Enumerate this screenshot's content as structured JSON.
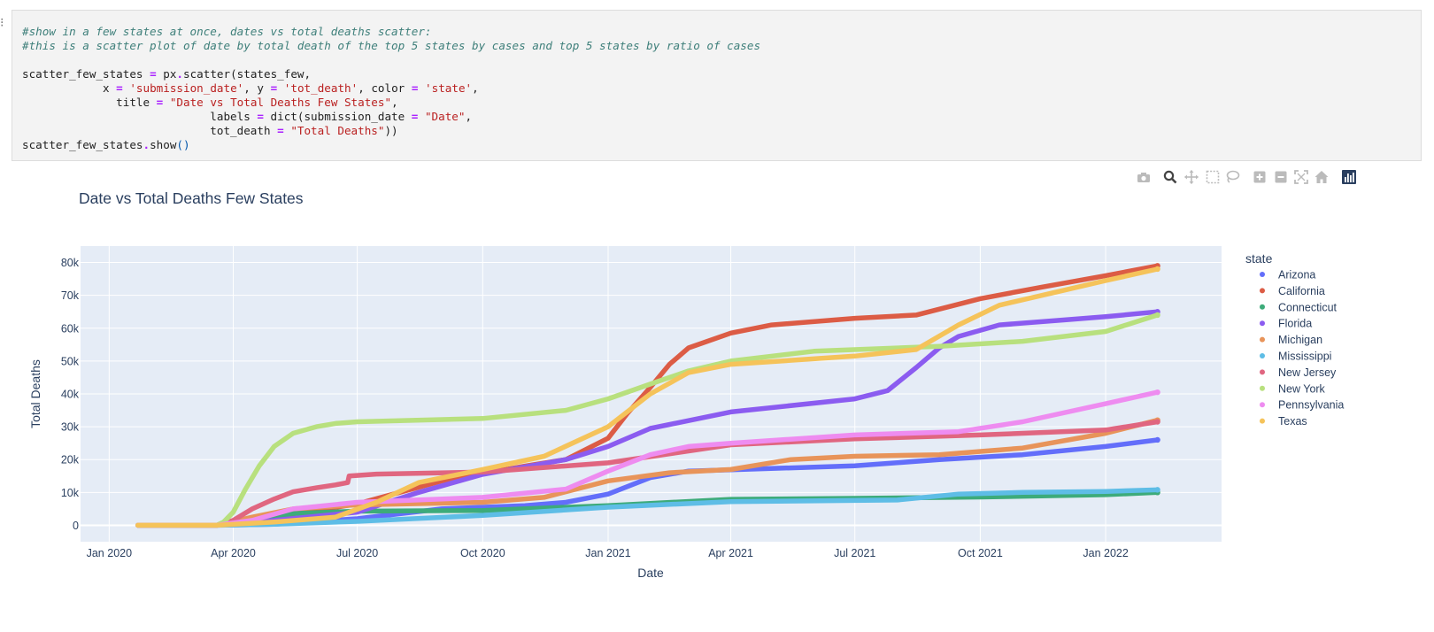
{
  "code_cell": {
    "lines": [
      [
        [
          "c",
          "#show in a few states at once, dates vs total deaths scatter:"
        ]
      ],
      [
        [
          "c",
          "#this is a scatter plot of date by total death of the top 5 states by cases and top 5 states by ratio of cases"
        ]
      ],
      [
        [
          "t",
          ""
        ]
      ],
      [
        [
          "t",
          "scatter_few_states "
        ],
        [
          "o",
          "="
        ],
        [
          "t",
          " px"
        ],
        [
          "o",
          "."
        ],
        [
          "t",
          "scatter(states_few,"
        ]
      ],
      [
        [
          "t",
          "            x "
        ],
        [
          "o",
          "="
        ],
        [
          "t",
          " "
        ],
        [
          "s",
          "'submission_date'"
        ],
        [
          "t",
          ", y "
        ],
        [
          "o",
          "="
        ],
        [
          "t",
          " "
        ],
        [
          "s",
          "'tot_death'"
        ],
        [
          "t",
          ", color "
        ],
        [
          "o",
          "="
        ],
        [
          "t",
          " "
        ],
        [
          "s",
          "'state'"
        ],
        [
          "t",
          ","
        ]
      ],
      [
        [
          "t",
          "              title "
        ],
        [
          "o",
          "="
        ],
        [
          "t",
          " "
        ],
        [
          "s",
          "\"Date vs Total Deaths Few States\""
        ],
        [
          "t",
          ","
        ]
      ],
      [
        [
          "t",
          "                            labels "
        ],
        [
          "o",
          "="
        ],
        [
          "t",
          " dict(submission_date "
        ],
        [
          "o",
          "="
        ],
        [
          "t",
          " "
        ],
        [
          "s",
          "\"Date\""
        ],
        [
          "t",
          ","
        ]
      ],
      [
        [
          "t",
          "                            tot_death "
        ],
        [
          "o",
          "="
        ],
        [
          "t",
          " "
        ],
        [
          "s",
          "\"Total Deaths\""
        ],
        [
          "t",
          "))"
        ]
      ],
      [
        [
          "t",
          "scatter_few_states"
        ],
        [
          "o",
          "."
        ],
        [
          "t",
          "show"
        ],
        [
          "p",
          "()"
        ]
      ]
    ]
  },
  "modebar": {
    "buttons": [
      {
        "name": "camera-icon",
        "color": "#bbbbbb"
      },
      {
        "name": "zoom-icon",
        "color": "#444444"
      },
      {
        "name": "pan-icon",
        "color": "#bbbbbb"
      },
      {
        "name": "box-select-icon",
        "color": "#bbbbbb"
      },
      {
        "name": "lasso-select-icon",
        "color": "#bbbbbb"
      },
      {
        "name": "zoom-in-icon",
        "color": "#bbbbbb"
      },
      {
        "name": "zoom-out-icon",
        "color": "#bbbbbb"
      },
      {
        "name": "autoscale-icon",
        "color": "#bbbbbb"
      },
      {
        "name": "reset-axes-icon",
        "color": "#bbbbbb"
      },
      {
        "name": "plotly-logo-icon",
        "color": "#2a3f5f"
      }
    ]
  },
  "chart_data": {
    "type": "scatter",
    "title": "Date vs Total Deaths Few States",
    "xlabel": "Date",
    "ylabel": "Total Deaths",
    "legend_title": "state",
    "legend_position": "right",
    "grid": true,
    "plot_bgcolor": "#e5ecf6",
    "x_ticks": [
      "2020-01-01",
      "2020-04-01",
      "2020-07-01",
      "2020-10-01",
      "2021-01-01",
      "2021-04-01",
      "2021-07-01",
      "2021-10-01",
      "2022-01-01"
    ],
    "x_tick_labels": [
      "Jan 2020",
      "Apr 2020",
      "Jul 2020",
      "Oct 2020",
      "Jan 2021",
      "Apr 2021",
      "Jul 2021",
      "Oct 2021",
      "Jan 2022"
    ],
    "xlim": [
      "2019-12-11",
      "2022-03-27"
    ],
    "y_ticks": [
      0,
      10000,
      20000,
      30000,
      40000,
      50000,
      60000,
      70000,
      80000
    ],
    "y_tick_labels": [
      "0",
      "10k",
      "20k",
      "30k",
      "40k",
      "50k",
      "60k",
      "70k",
      "80k"
    ],
    "ylim": [
      -5000,
      85000
    ],
    "series": [
      {
        "name": "Arizona",
        "color": "#636efa",
        "x": [
          "2020-01-22",
          "2020-03-20",
          "2020-05-01",
          "2020-07-01",
          "2020-09-01",
          "2020-11-01",
          "2020-12-01",
          "2021-01-01",
          "2021-02-01",
          "2021-03-01",
          "2021-04-01",
          "2021-07-01",
          "2021-09-01",
          "2021-11-01",
          "2022-01-01",
          "2022-02-08"
        ],
        "y": [
          0,
          0,
          300,
          2000,
          5000,
          6000,
          7000,
          9500,
          14500,
          16500,
          16900,
          18100,
          20000,
          21500,
          24000,
          26000
        ]
      },
      {
        "name": "California",
        "color": "#dc5c45",
        "x": [
          "2020-01-22",
          "2020-03-20",
          "2020-04-15",
          "2020-05-15",
          "2020-07-01",
          "2020-09-01",
          "2020-11-01",
          "2020-12-01",
          "2021-01-01",
          "2021-01-15",
          "2021-02-01",
          "2021-02-15",
          "2021-03-01",
          "2021-04-01",
          "2021-05-01",
          "2021-07-01",
          "2021-08-15",
          "2021-10-01",
          "2021-11-15",
          "2022-01-01",
          "2022-02-08"
        ],
        "y": [
          0,
          0,
          1200,
          3500,
          6500,
          13500,
          18000,
          20000,
          26500,
          34000,
          42000,
          49000,
          54000,
          58500,
          61000,
          63000,
          64000,
          69000,
          72500,
          76000,
          79000
        ]
      },
      {
        "name": "Connecticut",
        "color": "#3dab7a",
        "x": [
          "2020-01-22",
          "2020-03-20",
          "2020-04-15",
          "2020-05-15",
          "2020-07-01",
          "2020-10-01",
          "2021-01-01",
          "2021-04-01",
          "2021-07-01",
          "2021-10-01",
          "2022-01-01",
          "2022-02-08"
        ],
        "y": [
          0,
          0,
          1500,
          3600,
          4300,
          4500,
          6000,
          7900,
          8200,
          8600,
          9300,
          10000
        ]
      },
      {
        "name": "Florida",
        "color": "#8b5cf0",
        "x": [
          "2020-01-22",
          "2020-03-20",
          "2020-05-01",
          "2020-07-01",
          "2020-08-15",
          "2020-10-01",
          "2020-12-01",
          "2021-01-01",
          "2021-02-01",
          "2021-04-01",
          "2021-07-01",
          "2021-07-25",
          "2021-08-15",
          "2021-09-01",
          "2021-09-15",
          "2021-10-15",
          "2021-12-01",
          "2022-01-01",
          "2022-02-08"
        ],
        "y": [
          0,
          0,
          1500,
          4000,
          10000,
          15500,
          20000,
          24000,
          29500,
          34500,
          38500,
          41000,
          48000,
          54000,
          57500,
          61000,
          62500,
          63500,
          65000
        ]
      },
      {
        "name": "Michigan",
        "color": "#e8945a",
        "x": [
          "2020-01-22",
          "2020-03-20",
          "2020-04-15",
          "2020-05-15",
          "2020-07-01",
          "2020-10-01",
          "2020-11-15",
          "2021-01-01",
          "2021-02-15",
          "2021-04-01",
          "2021-05-15",
          "2021-07-01",
          "2021-09-01",
          "2021-11-01",
          "2022-01-01",
          "2022-02-08"
        ],
        "y": [
          0,
          0,
          2500,
          5000,
          6200,
          7000,
          8500,
          13500,
          16000,
          17000,
          20000,
          21000,
          21500,
          23500,
          28000,
          32000
        ]
      },
      {
        "name": "Mississippi",
        "color": "#5ebde6",
        "x": [
          "2020-01-22",
          "2020-03-20",
          "2020-05-01",
          "2020-07-01",
          "2020-10-01",
          "2021-01-01",
          "2021-04-01",
          "2021-08-01",
          "2021-09-15",
          "2021-11-01",
          "2022-01-01",
          "2022-02-08"
        ],
        "y": [
          0,
          0,
          300,
          1200,
          3000,
          5500,
          7200,
          7700,
          9500,
          10000,
          10300,
          10800
        ]
      },
      {
        "name": "New Jersey",
        "color": "#e06680",
        "x": [
          "2020-01-22",
          "2020-03-20",
          "2020-04-01",
          "2020-04-15",
          "2020-05-01",
          "2020-05-15",
          "2020-06-01",
          "2020-06-15",
          "2020-06-24",
          "2020-06-25",
          "2020-07-15",
          "2020-10-01",
          "2021-01-01",
          "2021-04-01",
          "2021-07-01",
          "2021-10-01",
          "2022-01-01",
          "2022-02-08"
        ],
        "y": [
          0,
          0,
          1500,
          5000,
          8000,
          10200,
          11400,
          12300,
          13000,
          15000,
          15600,
          16200,
          19000,
          24500,
          26300,
          27500,
          29000,
          31500
        ]
      },
      {
        "name": "New York",
        "color": "#b8e07e",
        "x": [
          "2020-01-22",
          "2020-03-20",
          "2020-03-25",
          "2020-04-01",
          "2020-04-10",
          "2020-04-20",
          "2020-05-01",
          "2020-05-15",
          "2020-06-01",
          "2020-06-15",
          "2020-07-01",
          "2020-10-01",
          "2020-12-01",
          "2021-01-01",
          "2021-02-01",
          "2021-03-01",
          "2021-04-01",
          "2021-06-01",
          "2021-09-01",
          "2021-11-01",
          "2022-01-01",
          "2022-02-08"
        ],
        "y": [
          0,
          0,
          1000,
          4000,
          11000,
          18000,
          24000,
          28000,
          30000,
          31000,
          31500,
          32500,
          35000,
          38500,
          43000,
          47000,
          50000,
          53000,
          54500,
          56000,
          59000,
          64000
        ]
      },
      {
        "name": "Pennsylvania",
        "color": "#ee8cf0",
        "x": [
          "2020-01-22",
          "2020-03-20",
          "2020-04-15",
          "2020-05-15",
          "2020-07-01",
          "2020-10-01",
          "2020-12-01",
          "2021-01-01",
          "2021-02-01",
          "2021-03-01",
          "2021-04-01",
          "2021-07-01",
          "2021-09-15",
          "2021-11-01",
          "2022-01-01",
          "2022-02-08"
        ],
        "y": [
          0,
          0,
          1500,
          5000,
          7000,
          8500,
          11000,
          16500,
          21500,
          24000,
          25000,
          27500,
          28500,
          31500,
          37000,
          40500
        ]
      },
      {
        "name": "Texas",
        "color": "#f5c35a",
        "x": [
          "2020-01-22",
          "2020-03-20",
          "2020-05-01",
          "2020-06-15",
          "2020-07-15",
          "2020-08-15",
          "2020-10-01",
          "2020-11-15",
          "2021-01-01",
          "2021-02-01",
          "2021-03-01",
          "2021-04-01",
          "2021-07-01",
          "2021-08-15",
          "2021-09-15",
          "2021-10-15",
          "2021-12-01",
          "2022-01-01",
          "2022-02-08"
        ],
        "y": [
          0,
          0,
          1000,
          2500,
          7000,
          13000,
          17000,
          21000,
          30000,
          40000,
          46500,
          49000,
          51500,
          53500,
          61000,
          67000,
          71500,
          74500,
          78000
        ]
      }
    ]
  }
}
